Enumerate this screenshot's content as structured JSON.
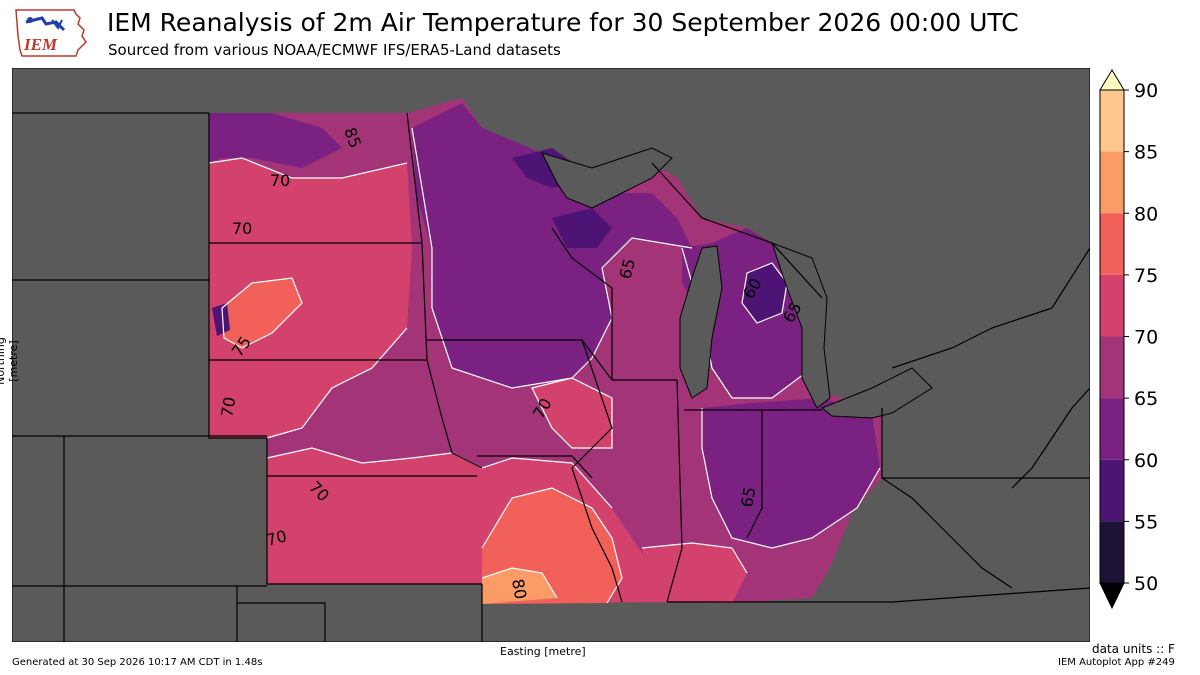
{
  "header": {
    "title": "IEM Reanalysis of 2m Air Temperature for 30 September 2026 00:00 UTC",
    "subtitle": "Sourced from various NOAA/ECMWF IFS/ERA5-Land datasets",
    "logo_text": "IEM"
  },
  "axes": {
    "xlabel": "Easting [metre]",
    "ylabel": "Northing [metre]"
  },
  "footer": {
    "units": "data units :: F",
    "generated": "Generated at 30 Sep 2026 10:17 AM CDT in 1.48s",
    "app": "IEM Autoplot App #249"
  },
  "colorbar": {
    "ticks": [
      "90",
      "85",
      "80",
      "75",
      "70",
      "65",
      "60",
      "55",
      "50"
    ],
    "bins": [
      {
        "range": "85-90",
        "color": "#fcc88c"
      },
      {
        "range": "80-85",
        "color": "#fb9b66"
      },
      {
        "range": "75-80",
        "color": "#f1615a"
      },
      {
        "range": "70-75",
        "color": "#d2426c"
      },
      {
        "range": "65-70",
        "color": "#a43478"
      },
      {
        "range": "60-65",
        "color": "#7a2181"
      },
      {
        "range": "55-60",
        "color": "#4e1475"
      },
      {
        "range": "50-55",
        "color": "#1e1236"
      }
    ],
    "over_color": "#fcfdbf",
    "under_color": "#000004"
  },
  "map": {
    "background_color": "#5a5a5a",
    "contour_labels": [
      "85",
      "70",
      "70",
      "75",
      "70",
      "70",
      "70",
      "70",
      "65",
      "60",
      "65",
      "65",
      "70",
      "80"
    ]
  }
}
